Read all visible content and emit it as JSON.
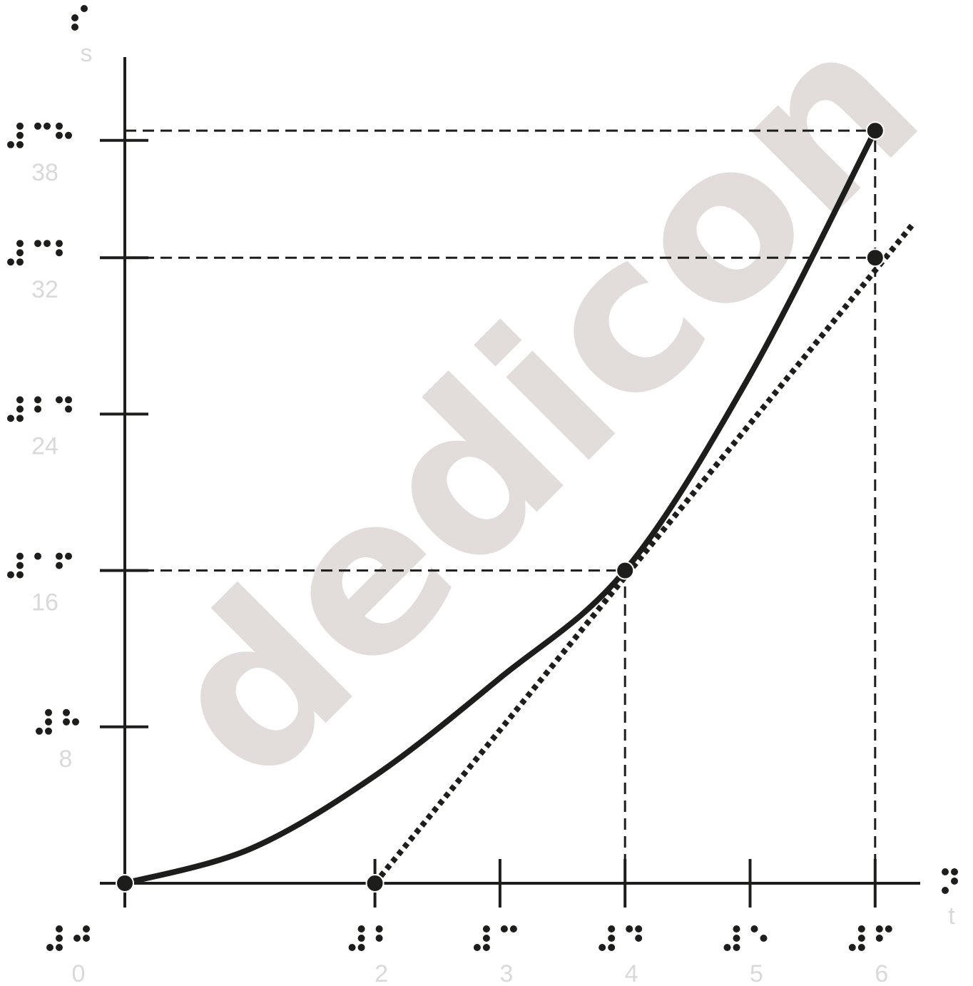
{
  "watermark": "dedicon",
  "chart_data": {
    "type": "line",
    "title": "",
    "xlabel": "t",
    "ylabel": "s",
    "xlim": [
      0,
      6.35
    ],
    "ylim": [
      0,
      41.4
    ],
    "x_ticks": [
      0,
      2,
      3,
      4,
      5,
      6
    ],
    "x_tick_labels": [
      "0",
      "2",
      "3",
      "4",
      "5",
      "6"
    ],
    "y_ticks": [
      8,
      16,
      24,
      32,
      38
    ],
    "y_tick_labels": [
      "8",
      "16",
      "24",
      "32",
      "38"
    ],
    "series": [
      {
        "style": "solid-curve",
        "x": [
          0,
          1,
          2,
          3,
          4,
          5,
          6
        ],
        "y": [
          0,
          1.75,
          5.5,
          10.5,
          16,
          26,
          38.5
        ]
      },
      {
        "style": "dotted-tangent",
        "x": [
          2,
          6.3
        ],
        "y": [
          0,
          33.7
        ]
      }
    ],
    "points": [
      {
        "x": 0,
        "y": 0
      },
      {
        "x": 2,
        "y": 0
      },
      {
        "x": 4,
        "y": 16
      },
      {
        "x": 6,
        "y": 38.5
      },
      {
        "x": 6,
        "y": 32
      }
    ],
    "reference_lines": [
      {
        "from": [
          0,
          38.5
        ],
        "to": [
          6,
          38.5
        ]
      },
      {
        "from": [
          0,
          32
        ],
        "to": [
          6,
          32
        ]
      },
      {
        "from": [
          0,
          16
        ],
        "to": [
          4,
          16
        ]
      },
      {
        "from": [
          4,
          0
        ],
        "to": [
          4,
          16
        ]
      },
      {
        "from": [
          6,
          0
        ],
        "to": [
          6,
          38.5
        ]
      }
    ],
    "grid": false,
    "legend": "none"
  }
}
